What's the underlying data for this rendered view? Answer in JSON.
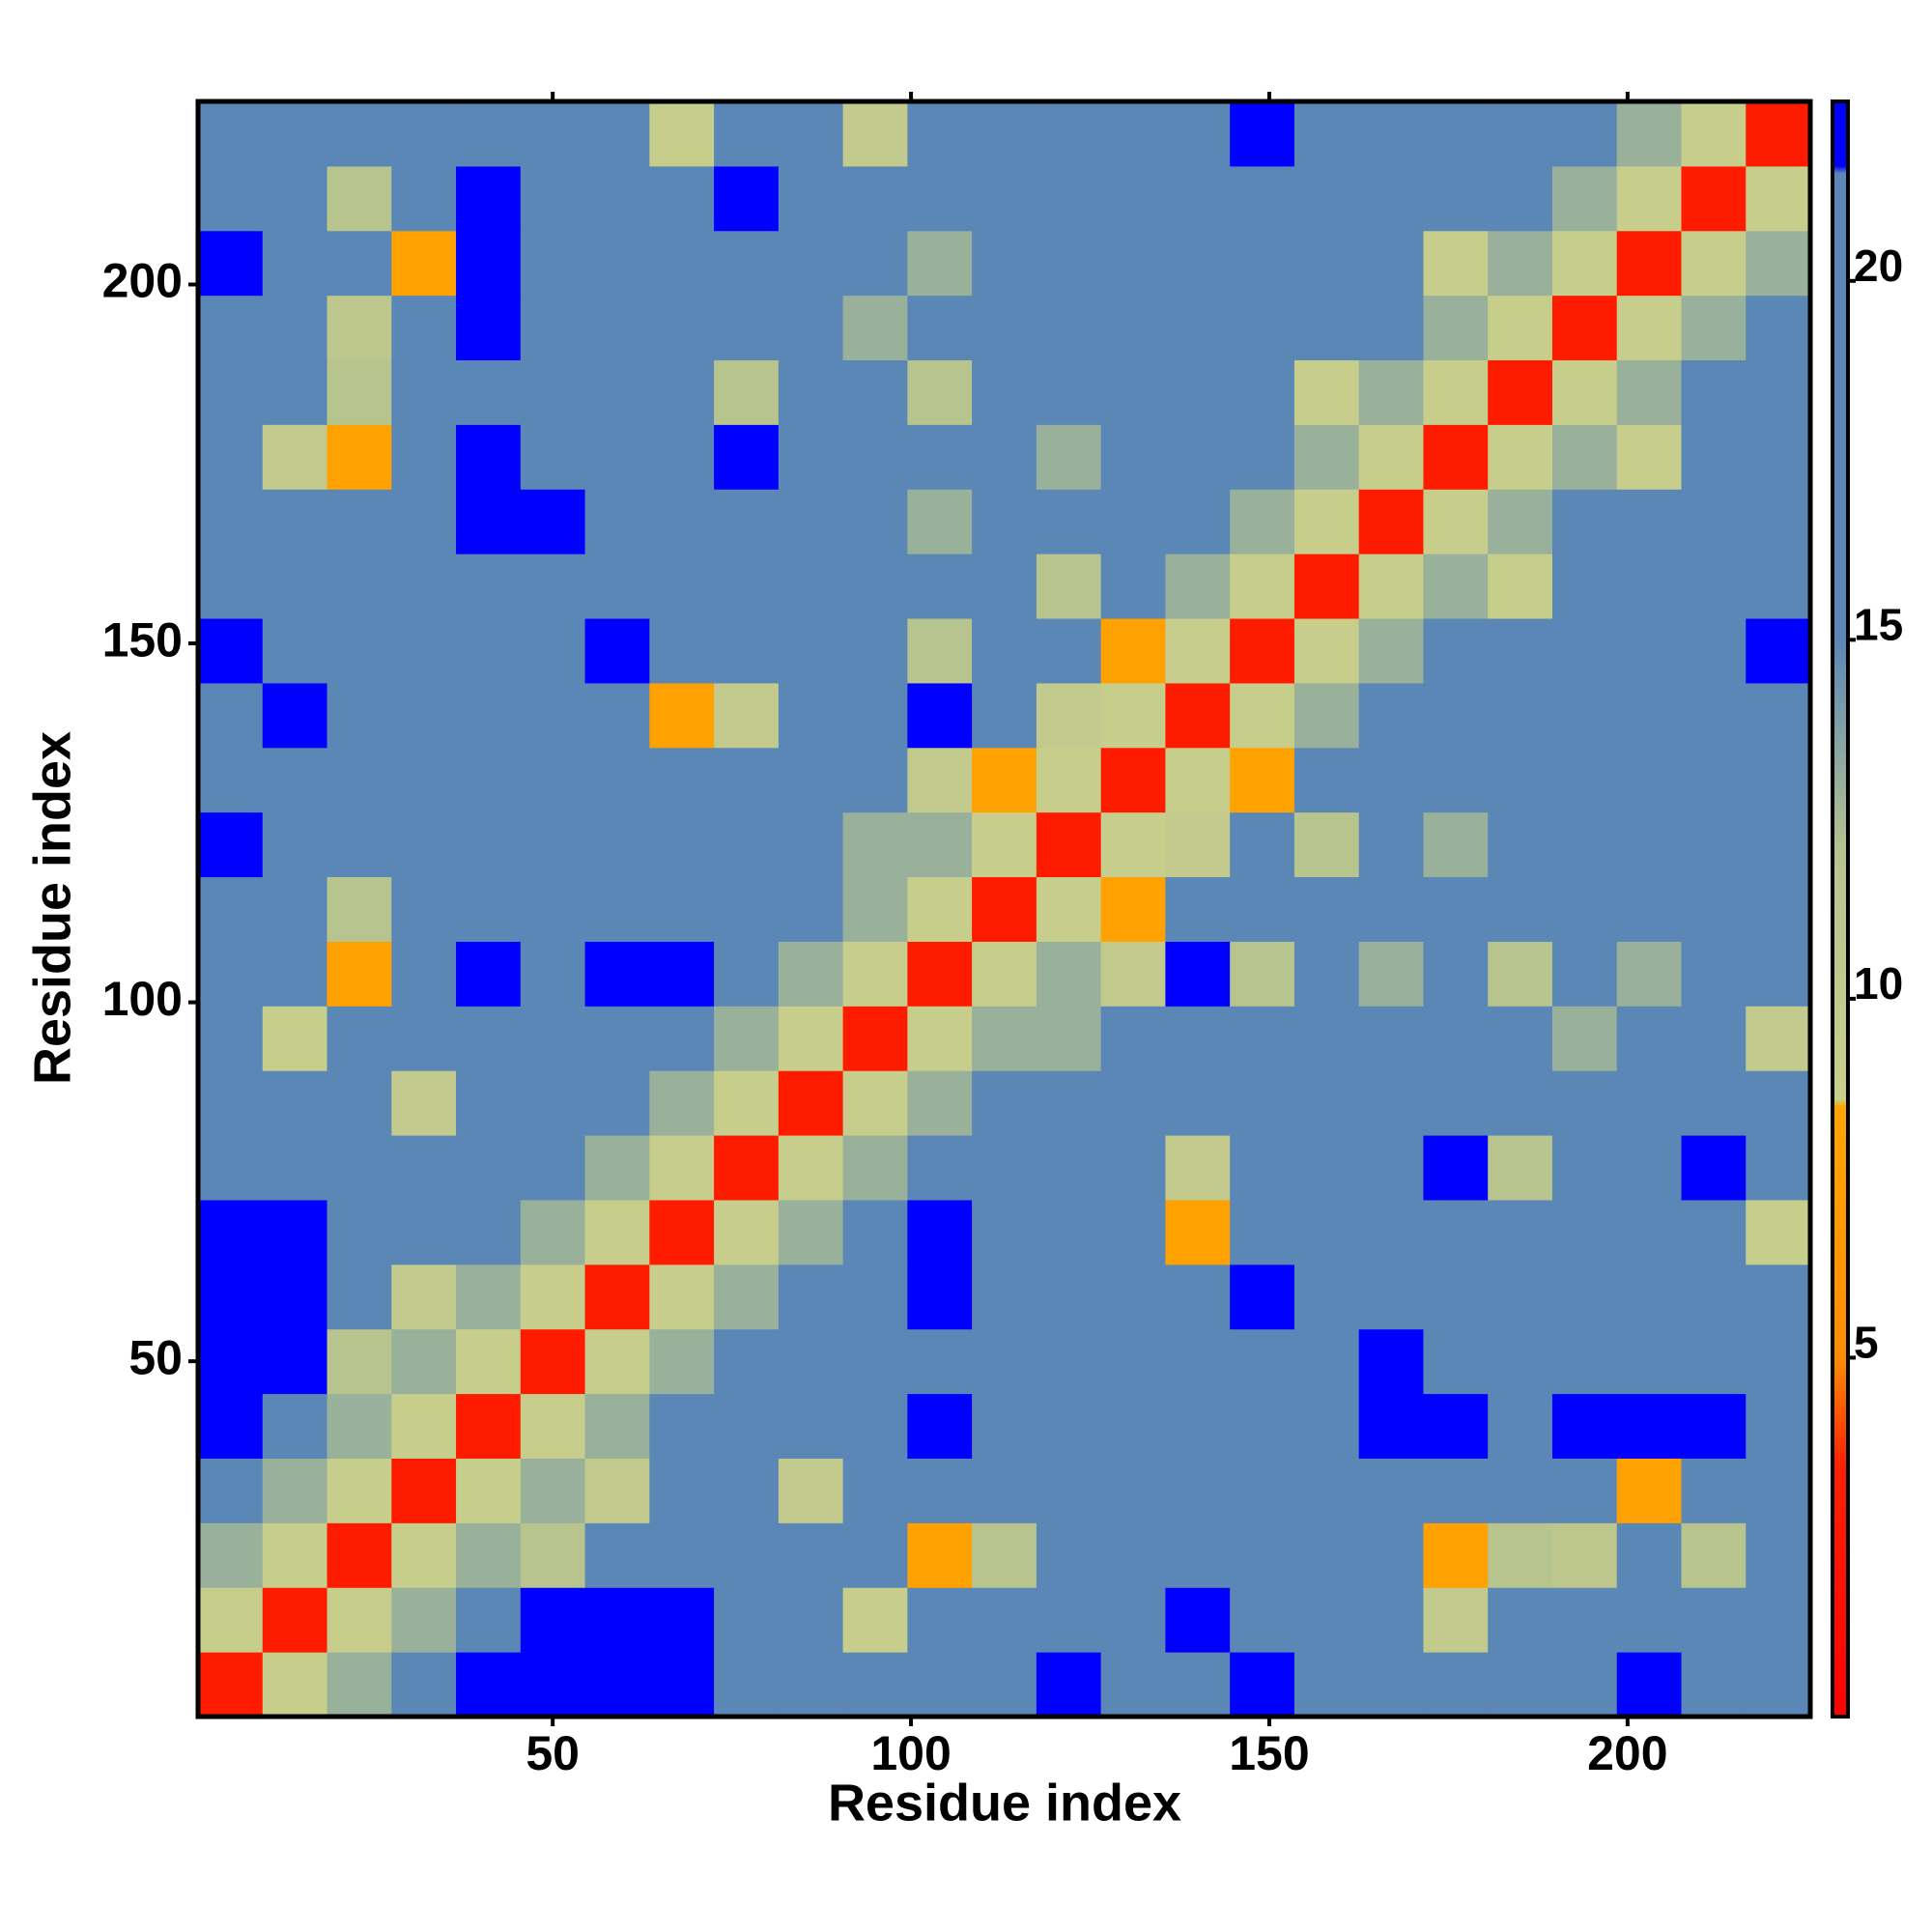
{
  "chart_data": {
    "type": "heatmap",
    "xlabel": "Residue index",
    "ylabel": "Residue index",
    "x": [
      5,
      14,
      23,
      32,
      41,
      50,
      59,
      68,
      77,
      86,
      95,
      104,
      113,
      122,
      131,
      140,
      149,
      158,
      167,
      176,
      185,
      194,
      203,
      212,
      221
    ],
    "y": [
      5,
      14,
      23,
      32,
      41,
      50,
      59,
      68,
      77,
      86,
      95,
      104,
      113,
      122,
      131,
      140,
      149,
      158,
      167,
      176,
      185,
      194,
      203,
      212,
      221
    ],
    "cell_size": 9,
    "xlim": [
      0.5,
      225.5
    ],
    "ylim": [
      0.5,
      225.5
    ],
    "xticks": [
      50,
      100,
      150,
      200
    ],
    "yticks": [
      50,
      100,
      150,
      200
    ],
    "colorbar": {
      "lim": [
        0,
        22.5
      ],
      "ticks": [
        5,
        10,
        15,
        20
      ]
    },
    "colorscale": [
      [
        0,
        "#ff0000"
      ],
      [
        3.5,
        "#ff2000"
      ],
      [
        5,
        "#ff8c00"
      ],
      [
        8.5,
        "#ffa500"
      ],
      [
        8.6,
        "#c9cf8c"
      ],
      [
        12,
        "#b8c48e"
      ],
      [
        15,
        "#5b87b6"
      ],
      [
        21.5,
        "#5b87b6"
      ],
      [
        21.6,
        "#0000ff"
      ],
      [
        22.5,
        "#0000ff"
      ]
    ],
    "z": [
      [
        3,
        9,
        13,
        16,
        22,
        22,
        22,
        22,
        19,
        19,
        19,
        19,
        19,
        22,
        19,
        19,
        22,
        19,
        19,
        19,
        19,
        19,
        22,
        19,
        19
      ],
      [
        9,
        3,
        9,
        13,
        16,
        22,
        22,
        22,
        19,
        19,
        9,
        19,
        19,
        19,
        19,
        22,
        19,
        19,
        19,
        10,
        19,
        19,
        19,
        19,
        19
      ],
      [
        13,
        9,
        3,
        9,
        13,
        12,
        19,
        19,
        19,
        19,
        19,
        8,
        12,
        19,
        19,
        19,
        19,
        19,
        19,
        8,
        12,
        11,
        19,
        12,
        19
      ],
      [
        16,
        13,
        9,
        3,
        9,
        13,
        10,
        19,
        19,
        10,
        19,
        19,
        19,
        19,
        19,
        19,
        19,
        19,
        19,
        19,
        19,
        19,
        8,
        19,
        19
      ],
      [
        22,
        16,
        13,
        9,
        3,
        9,
        13,
        16,
        19,
        19,
        19,
        22,
        19,
        19,
        19,
        19,
        19,
        19,
        22,
        22,
        19,
        22,
        22,
        22,
        19
      ],
      [
        22,
        22,
        12,
        13,
        9,
        3,
        9,
        13,
        16,
        19,
        19,
        19,
        19,
        19,
        19,
        19,
        19,
        19,
        22,
        19,
        19,
        19,
        19,
        19,
        19
      ],
      [
        22,
        22,
        19,
        10,
        13,
        9,
        3,
        9,
        13,
        16,
        19,
        22,
        19,
        19,
        19,
        19,
        22,
        19,
        19,
        19,
        19,
        19,
        19,
        19,
        19
      ],
      [
        22,
        22,
        19,
        19,
        16,
        13,
        9,
        3,
        9,
        13,
        16,
        22,
        19,
        19,
        19,
        8,
        19,
        19,
        19,
        19,
        19,
        19,
        19,
        19,
        9
      ],
      [
        19,
        19,
        19,
        19,
        19,
        16,
        13,
        9,
        3,
        9,
        13,
        16,
        19,
        19,
        19,
        10,
        19,
        19,
        19,
        22,
        12,
        19,
        19,
        22,
        19
      ],
      [
        19,
        19,
        19,
        10,
        19,
        19,
        16,
        13,
        9,
        3,
        9,
        13,
        16,
        19,
        19,
        19,
        19,
        19,
        19,
        19,
        19,
        19,
        19,
        19,
        19
      ],
      [
        19,
        9,
        19,
        19,
        19,
        19,
        19,
        16,
        13,
        9,
        3,
        9,
        13,
        13,
        19,
        19,
        19,
        19,
        19,
        19,
        19,
        13,
        19,
        19,
        10
      ],
      [
        19,
        19,
        8,
        19,
        22,
        19,
        22,
        22,
        16,
        13,
        9,
        3,
        9,
        13,
        10,
        22,
        12,
        19,
        13,
        19,
        12,
        19,
        13,
        19,
        19
      ],
      [
        19,
        19,
        12,
        19,
        19,
        19,
        19,
        19,
        19,
        16,
        13,
        9,
        3,
        9,
        8,
        16,
        19,
        19,
        19,
        19,
        19,
        19,
        19,
        19,
        19
      ],
      [
        22,
        19,
        19,
        19,
        19,
        19,
        19,
        19,
        19,
        19,
        13,
        13,
        9,
        3,
        9,
        10,
        16,
        12,
        19,
        13,
        19,
        19,
        19,
        19,
        19
      ],
      [
        19,
        19,
        19,
        19,
        19,
        19,
        19,
        19,
        19,
        19,
        19,
        10,
        8,
        9,
        3,
        9,
        8,
        16,
        19,
        19,
        19,
        19,
        19,
        19,
        19
      ],
      [
        19,
        22,
        19,
        19,
        19,
        19,
        19,
        8,
        10,
        19,
        19,
        22,
        16,
        10,
        9,
        3,
        9,
        13,
        16,
        19,
        19,
        19,
        19,
        19,
        19
      ],
      [
        22,
        19,
        19,
        19,
        19,
        19,
        22,
        19,
        19,
        19,
        19,
        12,
        19,
        16,
        8,
        9,
        3,
        9,
        13,
        16,
        19,
        19,
        19,
        19,
        22
      ],
      [
        19,
        19,
        19,
        19,
        19,
        19,
        19,
        19,
        19,
        19,
        19,
        19,
        19,
        12,
        16,
        13,
        9,
        3,
        9,
        13,
        9,
        19,
        19,
        19,
        19
      ],
      [
        19,
        19,
        19,
        19,
        22,
        22,
        19,
        19,
        19,
        19,
        19,
        13,
        19,
        19,
        19,
        16,
        13,
        9,
        3,
        9,
        13,
        16,
        19,
        19,
        19
      ],
      [
        19,
        10,
        8,
        19,
        22,
        19,
        19,
        19,
        22,
        19,
        19,
        19,
        19,
        13,
        19,
        19,
        16,
        13,
        9,
        3,
        9,
        13,
        9,
        19,
        19
      ],
      [
        19,
        19,
        12,
        19,
        19,
        19,
        19,
        19,
        12,
        19,
        19,
        12,
        19,
        19,
        19,
        19,
        19,
        9,
        13,
        9,
        3,
        9,
        13,
        16,
        19
      ],
      [
        19,
        19,
        11,
        19,
        22,
        19,
        19,
        19,
        19,
        19,
        13,
        19,
        19,
        19,
        19,
        19,
        19,
        19,
        16,
        13,
        9,
        3,
        9,
        13,
        16
      ],
      [
        22,
        19,
        19,
        8,
        22,
        19,
        19,
        19,
        19,
        19,
        19,
        13,
        19,
        19,
        19,
        19,
        19,
        19,
        19,
        9,
        13,
        9,
        3,
        9,
        13
      ],
      [
        19,
        19,
        12,
        19,
        22,
        19,
        19,
        19,
        22,
        19,
        19,
        19,
        19,
        19,
        19,
        19,
        19,
        19,
        19,
        19,
        16,
        13,
        9,
        3,
        9
      ],
      [
        19,
        19,
        19,
        19,
        19,
        19,
        19,
        9,
        19,
        19,
        10,
        19,
        19,
        19,
        19,
        19,
        22,
        19,
        19,
        19,
        19,
        16,
        13,
        9,
        3
      ]
    ]
  }
}
